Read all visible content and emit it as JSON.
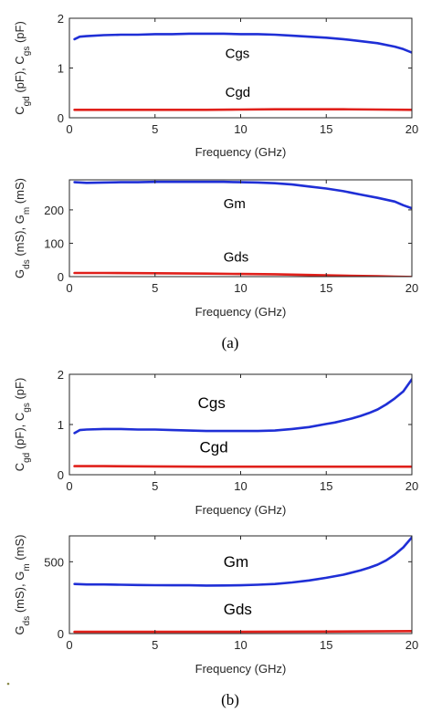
{
  "chart_data": [
    {
      "id": "a1",
      "type": "line",
      "xlabel": "Frequency (GHz)",
      "ylabel_parts": [
        "C",
        "gd",
        " (pF), C",
        "gs",
        " (pF)"
      ],
      "xlim": [
        0,
        20
      ],
      "ylim": [
        0,
        2
      ],
      "xticks": [
        0,
        5,
        10,
        15,
        20
      ],
      "yticks": [
        0,
        1,
        2
      ],
      "series": [
        {
          "name": "Cgs",
          "color": "#1f2fd6",
          "x": [
            0.3,
            0.6,
            1,
            2,
            3,
            4,
            5,
            6,
            7,
            8,
            9,
            10,
            11,
            12,
            13,
            14,
            15,
            16,
            17,
            18,
            19,
            19.5,
            20
          ],
          "y": [
            1.58,
            1.63,
            1.64,
            1.66,
            1.67,
            1.67,
            1.68,
            1.68,
            1.69,
            1.69,
            1.69,
            1.68,
            1.68,
            1.67,
            1.65,
            1.63,
            1.61,
            1.58,
            1.54,
            1.5,
            1.43,
            1.38,
            1.31
          ]
        },
        {
          "name": "Cgd",
          "color": "#e0201b",
          "x": [
            0.3,
            2,
            5,
            8,
            10,
            12,
            14,
            16,
            18,
            20
          ],
          "y": [
            0.16,
            0.16,
            0.16,
            0.16,
            0.165,
            0.17,
            0.17,
            0.17,
            0.165,
            0.16
          ]
        }
      ],
      "annotations": [
        {
          "text": "Cgs",
          "x": 9.1,
          "y": 1.2
        },
        {
          "text": "Cgd",
          "x": 9.1,
          "y": 0.42
        }
      ]
    },
    {
      "id": "a2",
      "type": "line",
      "xlabel": "Frequency (GHz)",
      "ylabel_parts": [
        "G",
        "ds",
        " (mS), G",
        "m",
        " (mS)"
      ],
      "xlim": [
        0,
        20
      ],
      "ylim": [
        0,
        290
      ],
      "xticks": [
        0,
        5,
        10,
        15,
        20
      ],
      "yticks": [
        0,
        100,
        200
      ],
      "series": [
        {
          "name": "Gm",
          "color": "#1f2fd6",
          "x": [
            0.3,
            1,
            2,
            3,
            4,
            5,
            6,
            7,
            8,
            9,
            10,
            11,
            12,
            13,
            14,
            15,
            16,
            17,
            18,
            19,
            19.5,
            20
          ],
          "y": [
            283,
            281,
            282,
            283,
            283,
            284,
            284,
            284,
            284,
            284,
            283,
            282,
            280,
            276,
            270,
            264,
            256,
            246,
            236,
            225,
            214,
            205
          ]
        },
        {
          "name": "Gds",
          "color": "#e0201b",
          "x": [
            0.3,
            2,
            5,
            8,
            10,
            12,
            14,
            16,
            18,
            19,
            20
          ],
          "y": [
            11,
            11,
            10,
            9,
            8,
            7,
            5,
            3,
            1,
            0,
            -1
          ]
        }
      ],
      "annotations": [
        {
          "text": "Gm",
          "x": 9.0,
          "y": 205
        },
        {
          "text": "Gds",
          "x": 9.0,
          "y": 45
        }
      ]
    },
    {
      "id": "b1",
      "type": "line",
      "xlabel": "Frequency (GHz)",
      "ylabel_parts": [
        "C",
        "gd",
        " (pF), C",
        "gs",
        " (pF)"
      ],
      "xlim": [
        0,
        20
      ],
      "ylim": [
        0,
        2
      ],
      "xticks": [
        0,
        5,
        10,
        15,
        20
      ],
      "yticks": [
        0,
        1,
        2
      ],
      "series": [
        {
          "name": "Cgs",
          "color": "#1f2fd6",
          "x": [
            0.3,
            0.6,
            1,
            2,
            3,
            4,
            5,
            6,
            7,
            8,
            9,
            10,
            11,
            12,
            13,
            14,
            15,
            15.5,
            16,
            16.5,
            17,
            17.5,
            18,
            18.5,
            19,
            19.5,
            20
          ],
          "y": [
            0.83,
            0.89,
            0.9,
            0.91,
            0.91,
            0.9,
            0.9,
            0.89,
            0.88,
            0.87,
            0.87,
            0.87,
            0.87,
            0.88,
            0.91,
            0.95,
            1.01,
            1.04,
            1.08,
            1.12,
            1.17,
            1.23,
            1.3,
            1.4,
            1.52,
            1.66,
            1.9
          ]
        },
        {
          "name": "Cgd",
          "color": "#e0201b",
          "x": [
            0.3,
            2,
            5,
            8,
            10,
            12,
            14,
            16,
            18,
            20
          ],
          "y": [
            0.17,
            0.17,
            0.165,
            0.16,
            0.16,
            0.16,
            0.16,
            0.16,
            0.16,
            0.16
          ]
        }
      ],
      "annotations": [
        {
          "text": "Cgs",
          "x": 7.5,
          "y": 1.33
        },
        {
          "text": "Cgd",
          "x": 7.6,
          "y": 0.45
        }
      ]
    },
    {
      "id": "b2",
      "type": "line",
      "xlabel": "Frequency (GHz)",
      "ylabel_parts": [
        "G",
        "ds",
        " (mS), G",
        "m",
        " (mS)"
      ],
      "xlim": [
        0,
        20
      ],
      "ylim": [
        0,
        680
      ],
      "xticks": [
        0,
        5,
        10,
        15,
        20
      ],
      "yticks": [
        0,
        500
      ],
      "series": [
        {
          "name": "Gm",
          "color": "#1f2fd6",
          "x": [
            0.3,
            1,
            2,
            3,
            4,
            5,
            6,
            7,
            8,
            9,
            10,
            11,
            12,
            13,
            14,
            15,
            16,
            17,
            17.5,
            18,
            18.5,
            19,
            19.5,
            20
          ],
          "y": [
            345,
            342,
            342,
            340,
            338,
            337,
            336,
            336,
            334,
            335,
            336,
            340,
            345,
            356,
            370,
            388,
            410,
            440,
            458,
            480,
            510,
            550,
            600,
            670
          ]
        },
        {
          "name": "Gds",
          "color": "#e0201b",
          "x": [
            0.3,
            5,
            10,
            15,
            20
          ],
          "y": [
            12,
            12,
            12,
            14,
            17
          ]
        }
      ],
      "annotations": [
        {
          "text": "Gm",
          "x": 9.0,
          "y": 465
        },
        {
          "text": "Gds",
          "x": 9.0,
          "y": 135
        }
      ]
    }
  ],
  "captions": {
    "a": "(a)",
    "b": "(b)"
  }
}
